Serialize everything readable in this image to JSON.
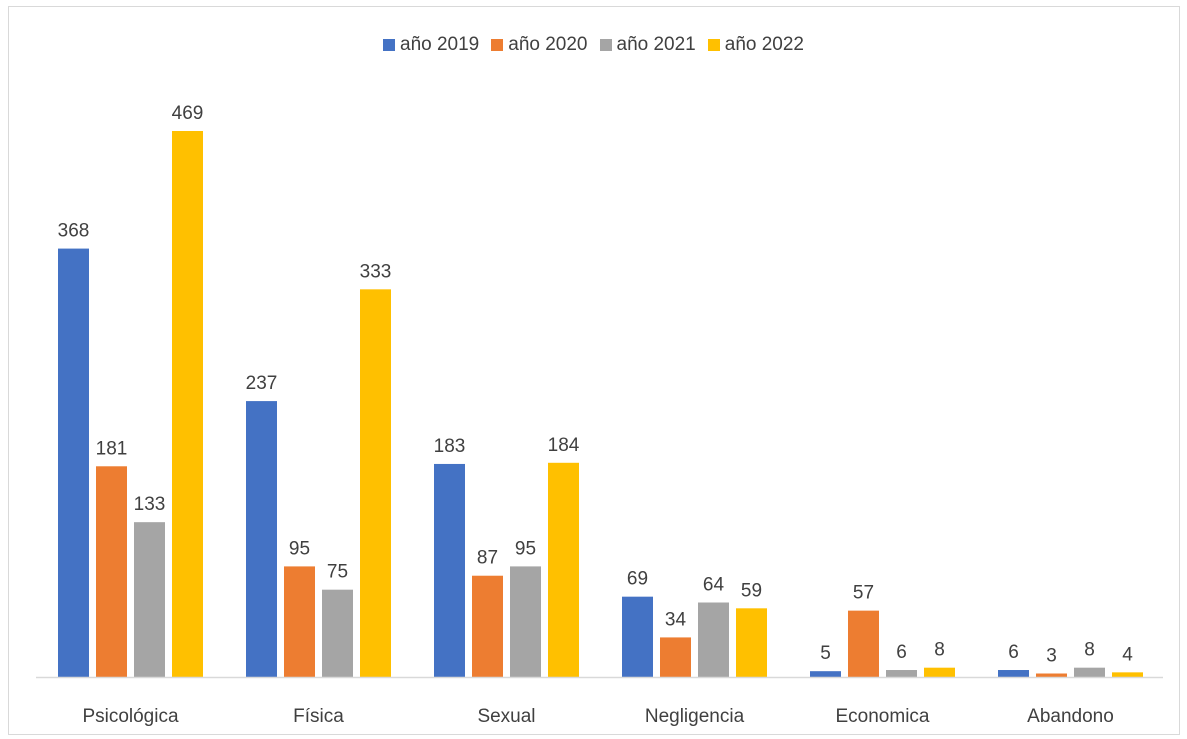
{
  "title": "",
  "legend": [
    {
      "name": "año 2019",
      "color": "#4472C4"
    },
    {
      "name": "año 2020",
      "color": "#ED7D31"
    },
    {
      "name": "año 2021",
      "color": "#A5A5A5"
    },
    {
      "name": "año 2022",
      "color": "#FFC000"
    }
  ],
  "chart_data": {
    "type": "bar",
    "categories": [
      "Psicológica",
      "Física",
      "Sexual",
      "Negligencia",
      "Economica",
      "Abandono"
    ],
    "series": [
      {
        "name": "año 2019",
        "color": "#4472C4",
        "values": [
          368,
          237,
          183,
          69,
          5,
          6
        ]
      },
      {
        "name": "año 2020",
        "color": "#ED7D31",
        "values": [
          181,
          95,
          87,
          34,
          57,
          3
        ]
      },
      {
        "name": "año 2021",
        "color": "#A5A5A5",
        "values": [
          133,
          75,
          95,
          64,
          6,
          8
        ]
      },
      {
        "name": "año 2022",
        "color": "#FFC000",
        "values": [
          469,
          333,
          184,
          59,
          8,
          4
        ]
      }
    ],
    "ylim": [
      0,
      469
    ],
    "grid": false,
    "legend_position": "top",
    "data_labels": true
  }
}
